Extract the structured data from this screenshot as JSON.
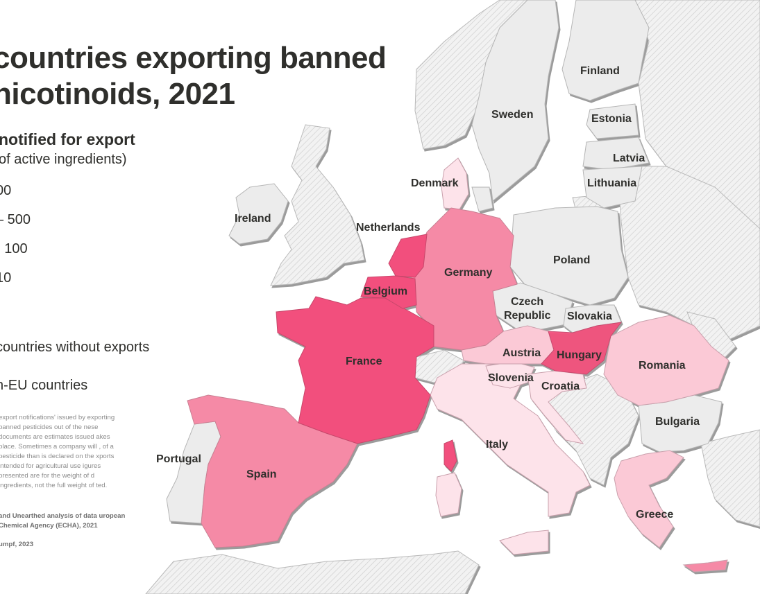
{
  "title": {
    "line1": "countries exporting banned",
    "line2": "nicotinoids, 2021"
  },
  "legend": {
    "title": "notified for export",
    "subtitle": "of active ingredients)",
    "items": [
      {
        "label": "00",
        "color": "#f2507d"
      },
      {
        "label": "– 500",
        "color": "#f58aa6"
      },
      {
        "label": "- 100",
        "color": "#fbc9d6"
      },
      {
        "label": "10",
        "color": "#fde3ea"
      }
    ],
    "no_exports_label": "countries without exports",
    "non_eu_label": "n-EU countries"
  },
  "note": "export notifications' issued by exporting banned pesticides out of the nese documents are estimates issued akes place. Sometimes a company will , of a pesticide than is declared on the xports intended for agricultural use igures presented are for the weight of d ingredients, not the full weight of ted.",
  "source": "and Unearthed analysis of data uropean Chemical Agency (ECHA), 2021",
  "credit": "umpf, 2023",
  "colors": {
    "darkest": "#f2507d",
    "dark": "#f58aa6",
    "medium": "#fbc9d6",
    "light": "#fde3ea",
    "no_exports": "#ececec",
    "non_eu_hatch": "#d4d4d4"
  },
  "countries": {
    "ireland": "Ireland",
    "netherlands": "Netherlands",
    "belgium": "Belgium",
    "france": "France",
    "spain": "Spain",
    "portugal": "Portugal",
    "germany": "Germany",
    "denmark": "Denmark",
    "sweden": "Sweden",
    "finland": "Finland",
    "estonia": "Estonia",
    "latvia": "Latvia",
    "lithuania": "Lithuania",
    "poland": "Poland",
    "czech1": "Czech",
    "czech2": "Republic",
    "slovakia": "Slovakia",
    "austria": "Austria",
    "hungary": "Hungary",
    "romania": "Romania",
    "slovenia": "Slovenia",
    "croatia": "Croatia",
    "bulgaria": "Bulgaria",
    "italy": "Italy",
    "greece": "Greece"
  }
}
